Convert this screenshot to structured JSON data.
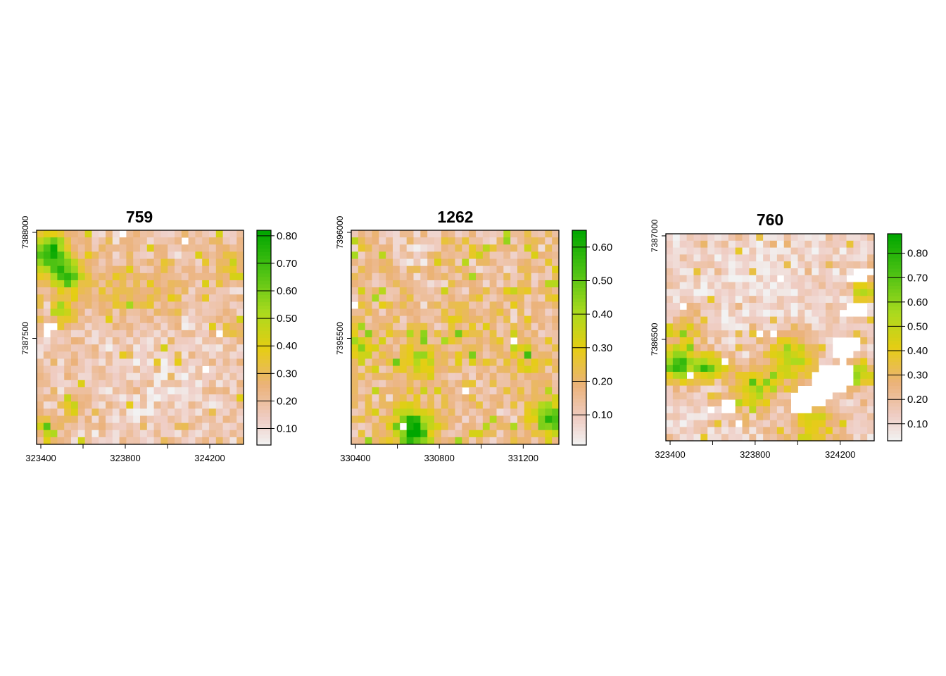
{
  "chart_data": [
    {
      "type": "heatmap",
      "title": "759",
      "grid": false,
      "legend": "right",
      "x_ticks": [
        323400,
        323800,
        324200
      ],
      "x_tick_labels": [
        "323400",
        "323800",
        "324200"
      ],
      "y_ticks": [
        7387500,
        7388000
      ],
      "y_tick_labels": [
        "7387500",
        "7388000"
      ],
      "xlim": [
        323380,
        324360
      ],
      "ylim": [
        7387000,
        7388010
      ],
      "colorbar": {
        "range": [
          0.04,
          0.82
        ],
        "ticks": [
          0.1,
          0.2,
          0.3,
          0.4,
          0.5,
          0.6,
          0.7,
          0.8
        ],
        "tick_labels": [
          "0.10",
          "0.20",
          "0.30",
          "0.40",
          "0.50",
          "0.60",
          "0.70",
          "0.80"
        ]
      },
      "grid_cells": [
        30,
        30
      ],
      "seed": 11,
      "base_value": 0.18,
      "blobs": [
        {
          "x": 0.06,
          "y": 0.1,
          "r": 0.1,
          "v": 0.55
        },
        {
          "x": 0.15,
          "y": 0.22,
          "r": 0.07,
          "v": 0.45
        },
        {
          "x": 0.14,
          "y": 0.38,
          "r": 0.06,
          "v": 0.35
        },
        {
          "x": 0.4,
          "y": 0.3,
          "r": 0.14,
          "v": 0.14
        },
        {
          "x": 0.62,
          "y": 0.3,
          "r": 0.1,
          "v": 0.12
        },
        {
          "x": 0.92,
          "y": 0.15,
          "r": 0.06,
          "v": 0.2
        },
        {
          "x": 0.95,
          "y": 0.45,
          "r": 0.05,
          "v": 0.16
        },
        {
          "x": 0.18,
          "y": 0.83,
          "r": 0.05,
          "v": 0.22
        },
        {
          "x": 0.05,
          "y": 0.92,
          "r": 0.05,
          "v": 0.3
        }
      ],
      "low_zones": [
        {
          "x": 0.55,
          "y": 0.72,
          "r": 0.3,
          "v": -0.07
        }
      ],
      "no_data_cells": [
        [
          1,
          13
        ],
        [
          2,
          13
        ],
        [
          1,
          14
        ],
        [
          12,
          0
        ],
        [
          21,
          1
        ],
        [
          24,
          19
        ],
        [
          26,
          14
        ]
      ]
    },
    {
      "type": "heatmap",
      "title": "1262",
      "grid": false,
      "legend": "right",
      "x_ticks": [
        330400,
        330800,
        331200
      ],
      "x_tick_labels": [
        "330400",
        "330800",
        "331200"
      ],
      "y_ticks": [
        7395500,
        7396000
      ],
      "y_tick_labels": [
        "7395500",
        "7396000"
      ],
      "xlim": [
        330380,
        331370
      ],
      "ylim": [
        7395000,
        7396010
      ],
      "colorbar": {
        "range": [
          0.01,
          0.65
        ],
        "ticks": [
          0.1,
          0.2,
          0.3,
          0.4,
          0.5,
          0.6
        ],
        "tick_labels": [
          "0.10",
          "0.20",
          "0.30",
          "0.40",
          "0.50",
          "0.60"
        ]
      },
      "grid_cells": [
        30,
        30
      ],
      "seed": 23,
      "base_value": 0.16,
      "blobs": [
        {
          "x": 0.3,
          "y": 0.93,
          "r": 0.1,
          "v": 0.48
        },
        {
          "x": 0.95,
          "y": 0.88,
          "r": 0.08,
          "v": 0.4
        },
        {
          "x": 0.33,
          "y": 0.6,
          "r": 0.09,
          "v": 0.22
        },
        {
          "x": 0.05,
          "y": 0.55,
          "r": 0.08,
          "v": 0.18
        },
        {
          "x": 0.55,
          "y": 0.45,
          "r": 0.12,
          "v": 0.08
        },
        {
          "x": 0.85,
          "y": 0.6,
          "r": 0.08,
          "v": 0.12
        },
        {
          "x": 0.5,
          "y": 0.12,
          "r": 0.1,
          "v": 0.08
        }
      ],
      "low_zones": [
        {
          "x": 0.4,
          "y": 0.12,
          "r": 0.2,
          "v": -0.05
        }
      ],
      "no_data_cells": [
        [
          0,
          10
        ],
        [
          16,
          22
        ],
        [
          23,
          15
        ],
        [
          7,
          27
        ]
      ]
    },
    {
      "type": "heatmap",
      "title": "760",
      "grid": false,
      "legend": "right",
      "x_ticks": [
        323400,
        323800,
        324200
      ],
      "x_tick_labels": [
        "323400",
        "323800",
        "324200"
      ],
      "y_ticks": [
        7386500,
        7387000
      ],
      "y_tick_labels": [
        "7386500",
        "7387000"
      ],
      "xlim": [
        323380,
        324360
      ],
      "ylim": [
        7386010,
        7387010
      ],
      "colorbar": {
        "range": [
          0.03,
          0.88
        ],
        "ticks": [
          0.1,
          0.2,
          0.3,
          0.4,
          0.5,
          0.6,
          0.7,
          0.8
        ],
        "tick_labels": [
          "0.10",
          "0.20",
          "0.30",
          "0.40",
          "0.50",
          "0.60",
          "0.70",
          "0.80"
        ]
      },
      "grid_cells": [
        30,
        30
      ],
      "seed": 37,
      "base_value": 0.14,
      "blobs": [
        {
          "x": 0.06,
          "y": 0.63,
          "r": 0.09,
          "v": 0.6
        },
        {
          "x": 0.22,
          "y": 0.64,
          "r": 0.07,
          "v": 0.42
        },
        {
          "x": 0.42,
          "y": 0.75,
          "r": 0.1,
          "v": 0.4
        },
        {
          "x": 0.6,
          "y": 0.6,
          "r": 0.12,
          "v": 0.4
        },
        {
          "x": 0.92,
          "y": 0.68,
          "r": 0.07,
          "v": 0.45
        },
        {
          "x": 0.7,
          "y": 0.92,
          "r": 0.12,
          "v": 0.3
        },
        {
          "x": 0.95,
          "y": 0.28,
          "r": 0.05,
          "v": 0.4
        },
        {
          "x": 0.1,
          "y": 0.45,
          "r": 0.08,
          "v": 0.25
        }
      ],
      "low_zones": [
        {
          "x": 0.45,
          "y": 0.2,
          "r": 0.3,
          "v": -0.06
        }
      ],
      "no_data_regions": [
        {
          "x": 0.69,
          "y": 0.79,
          "rx": 0.12,
          "ry": 0.06,
          "angle": -30
        },
        {
          "x": 0.8,
          "y": 0.7,
          "rx": 0.12,
          "ry": 0.07,
          "angle": -30
        },
        {
          "x": 0.86,
          "y": 0.55,
          "rx": 0.08,
          "ry": 0.06,
          "angle": -30
        },
        {
          "x": 0.9,
          "y": 0.37,
          "rx": 0.08,
          "ry": 0.04,
          "angle": -20
        },
        {
          "x": 0.93,
          "y": 0.2,
          "rx": 0.06,
          "ry": 0.03,
          "angle": -20
        },
        {
          "x": 0.3,
          "y": 0.84,
          "rx": 0.04,
          "ry": 0.04,
          "angle": 0
        }
      ],
      "no_data_cells": [
        [
          8,
          18
        ],
        [
          3,
          20
        ],
        [
          2,
          10
        ],
        [
          6,
          25
        ],
        [
          13,
          14
        ],
        [
          15,
          14
        ],
        [
          10,
          27
        ],
        [
          16,
          6
        ]
      ]
    }
  ]
}
